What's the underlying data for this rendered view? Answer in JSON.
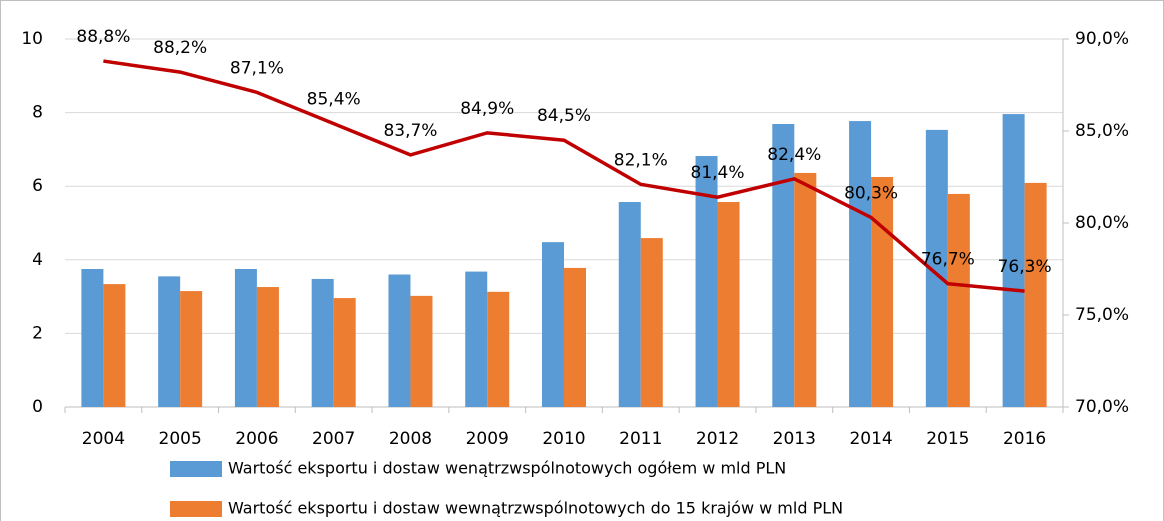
{
  "chart_data": {
    "type": "bar_line",
    "categories": [
      "2004",
      "2005",
      "2006",
      "2007",
      "2008",
      "2009",
      "2010",
      "2011",
      "2012",
      "2013",
      "2014",
      "2015",
      "2016"
    ],
    "series": [
      {
        "name": "Wartość eksportu i dostaw wenątrzwspólnotowych ogółem w mld PLN",
        "color": "#5b9bd5",
        "values": [
          3.75,
          3.55,
          3.75,
          3.48,
          3.6,
          3.68,
          4.48,
          5.57,
          6.82,
          7.69,
          7.77,
          7.53,
          7.96
        ]
      },
      {
        "name": "Wartość eksportu i dostaw wewnątrzwspólnotowych do 15 krajów w mld PLN",
        "color": "#ed7d31",
        "values": [
          3.34,
          3.15,
          3.26,
          2.96,
          3.02,
          3.13,
          3.78,
          4.59,
          5.57,
          6.36,
          6.25,
          5.79,
          6.09
        ]
      },
      {
        "type": "line",
        "axis": "y2",
        "color": "#c00000",
        "values": [
          88.8,
          88.2,
          87.1,
          85.4,
          83.7,
          84.9,
          84.5,
          82.1,
          81.4,
          82.4,
          80.3,
          76.7,
          76.3
        ],
        "value_labels": [
          "88,8%",
          "88,2%",
          "87,1%",
          "85,4%",
          "83,7%",
          "84,9%",
          "84,5%",
          "82,1%",
          "81,4%",
          "82,4%",
          "80,3%",
          "76,7%",
          "76,3%"
        ]
      }
    ],
    "ylim": [
      0,
      10
    ],
    "yticks": [
      0,
      2,
      4,
      6,
      8,
      10
    ],
    "y2lim": [
      70,
      90
    ],
    "y2ticks": [
      {
        "value": 70,
        "label": "70,0%"
      },
      {
        "value": 75,
        "label": "75,0%"
      },
      {
        "value": 80,
        "label": "80,0%"
      },
      {
        "value": 85,
        "label": "85,0%"
      },
      {
        "value": 90,
        "label": "90,0%"
      }
    ],
    "grid": true,
    "legend": "bottom"
  }
}
